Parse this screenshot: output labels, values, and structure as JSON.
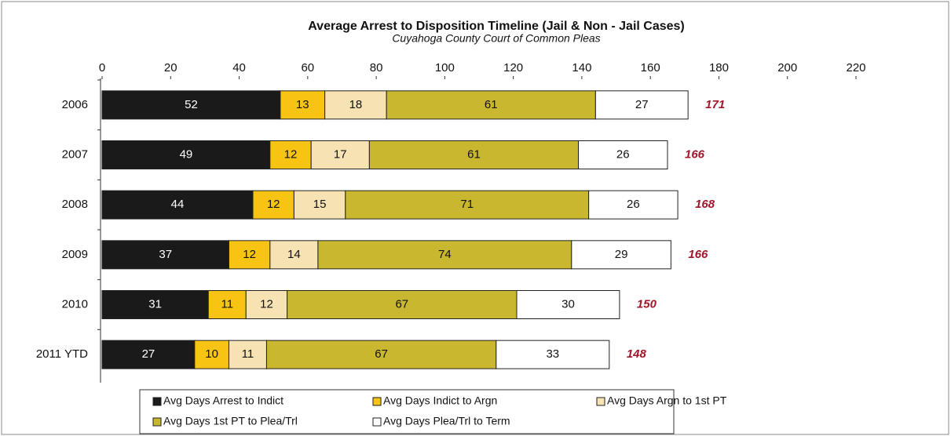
{
  "chart_data": {
    "type": "stacked-barh",
    "title": "Average Arrest to Disposition Timeline (Jail & Non - Jail Cases)",
    "subtitle": "Cuyahoga County Court of Common Pleas",
    "categories": [
      "2006",
      "2007",
      "2008",
      "2009",
      "2010",
      "2011 YTD"
    ],
    "series": [
      {
        "name": "Avg Days Arrest to Indict",
        "color": "#1a1a1a",
        "values": [
          52,
          49,
          44,
          37,
          31,
          27
        ]
      },
      {
        "name": "Avg Days Indict to Argn",
        "color": "#f7c414",
        "values": [
          13,
          12,
          12,
          12,
          11,
          10
        ]
      },
      {
        "name": "Avg Days Argn to 1st PT",
        "color": "#f6e2b3",
        "values": [
          18,
          17,
          15,
          14,
          12,
          11
        ]
      },
      {
        "name": "Avg Days 1st PT to Plea/Trl",
        "color": "#c9b82f",
        "values": [
          61,
          61,
          71,
          74,
          67,
          67
        ]
      },
      {
        "name": "Avg Days Plea/Trl to Term",
        "color": "#ffffff",
        "values": [
          27,
          26,
          26,
          29,
          30,
          33
        ]
      }
    ],
    "totals": [
      171,
      166,
      168,
      166,
      150,
      148
    ],
    "xlim": [
      0,
      220
    ],
    "xticks": [
      0,
      20,
      40,
      60,
      80,
      100,
      120,
      140,
      160,
      180,
      200,
      220
    ]
  }
}
